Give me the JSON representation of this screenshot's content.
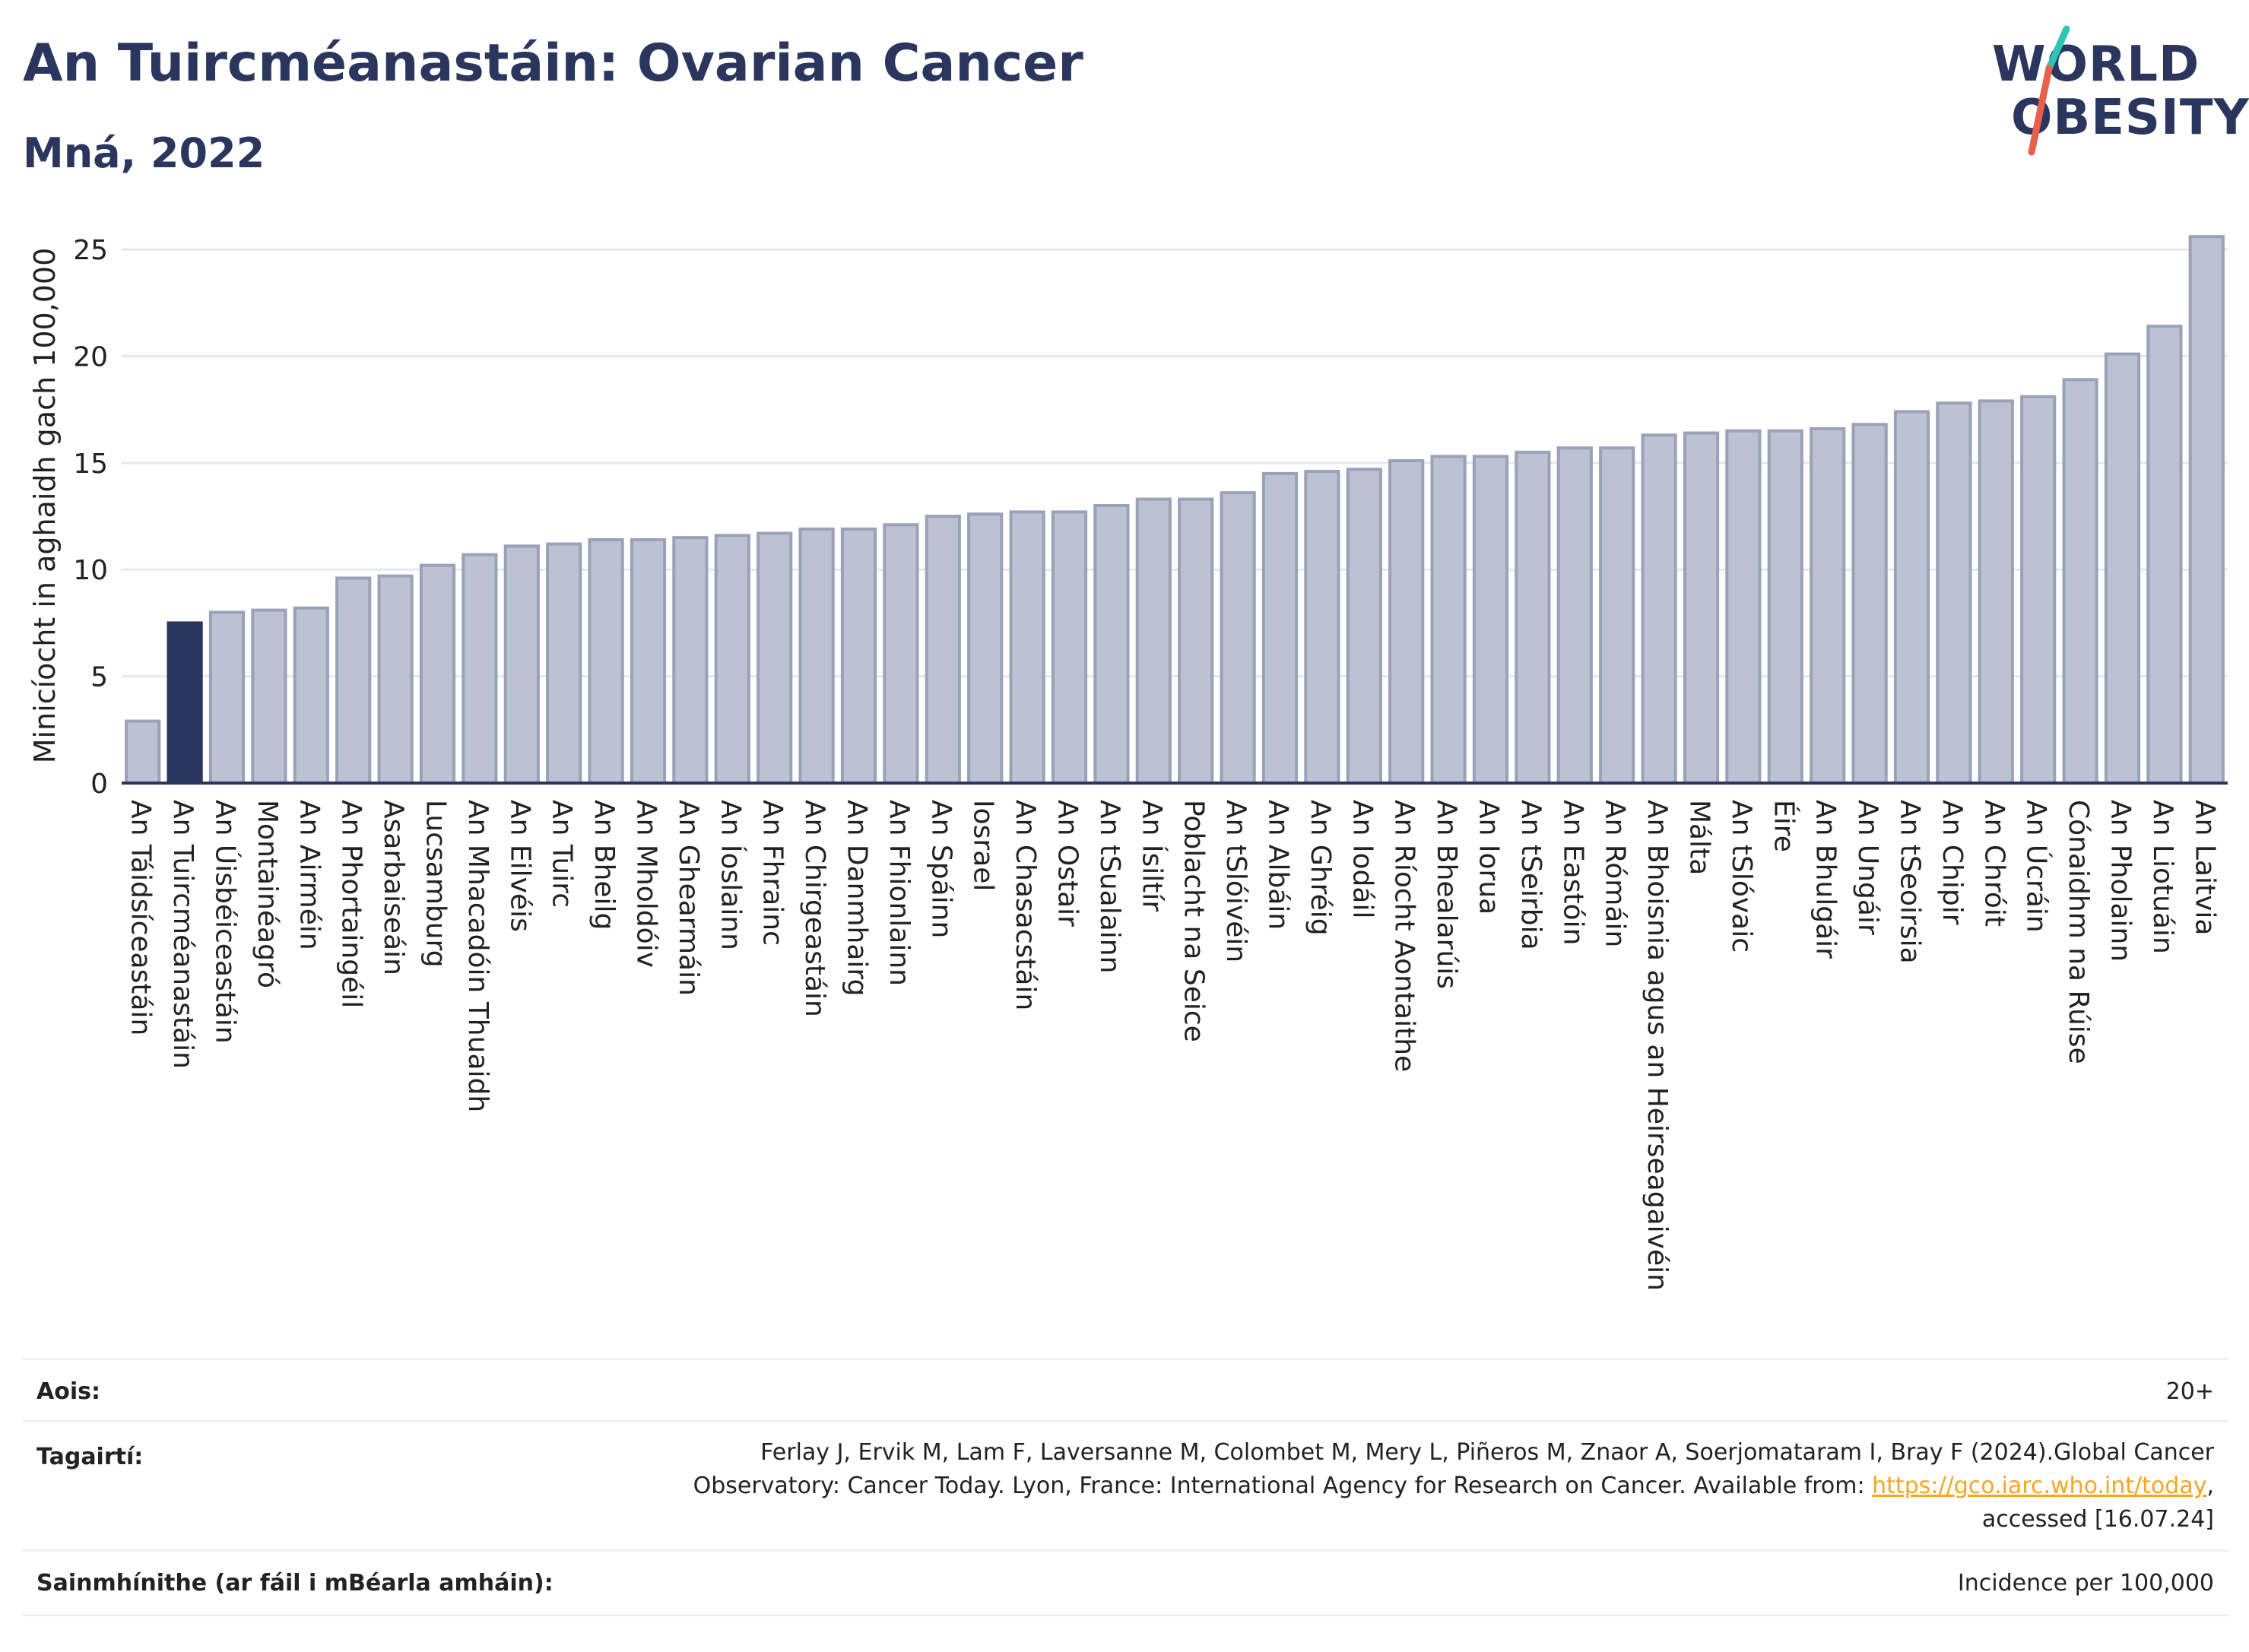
{
  "header": {
    "title": "An Tuircméanastáin: Ovarian Cancer",
    "subtitle": "Mná, 2022"
  },
  "logo": {
    "line1": "WORLD",
    "line2": "OBESITY"
  },
  "chart_data": {
    "type": "bar",
    "ylabel": "Minicíocht in aghaidh gach 100,000",
    "ylim": [
      0,
      26
    ],
    "yticks": [
      0,
      5,
      10,
      15,
      20,
      25
    ],
    "grid": true,
    "highlight_index": 1,
    "colors": {
      "default": "#bcc2d1",
      "default_edge": "#9aa1b9",
      "highlight": "#2b365e",
      "axis": "#2b365e",
      "grid": "#e6e8ef"
    },
    "categories": [
      "An Táidsíceastáin",
      "An Tuircméanastáin",
      "An Úisbéiceastáin",
      "Montainéagró",
      "An Airméin",
      "An Phortaingéil",
      "Asarbaiseáin",
      "Lucsamburg",
      "An Mhacadóin Thuaidh",
      "An Eilvéis",
      "An Tuirc",
      "An Bheilg",
      "An Mholdóiv",
      "An Ghearmáin",
      "An Íoslainn",
      "An Fhrainc",
      "An Chirgeastáin",
      "An Danmhairg",
      "An Fhionlainn",
      "An Spáinn",
      "Iosrael",
      "An Chasacstáin",
      "An Ostair",
      "An tSualainn",
      "An Ísiltír",
      "Poblacht na Seice",
      "An tSlóivéin",
      "An Albáin",
      "An Ghréig",
      "An Iodáil",
      "An Ríocht Aontaithe",
      "An Bhealarúis",
      "An Iorua",
      "An tSeirbia",
      "An Eastóin",
      "An Rómáin",
      "An Bhoisnia agus an Heirseagaivéin",
      "Málta",
      "An tSlóvaic",
      "Éire",
      "An Bhulgáir",
      "An Ungáir",
      "An tSeoirsia",
      "An Chipir",
      "An Chróit",
      "An Úcráin",
      "Cónaidhm na Rúise",
      "An Pholainn",
      "An Liotuáin",
      "An Laitvia"
    ],
    "values": [
      2.9,
      7.5,
      8.0,
      8.1,
      8.2,
      9.6,
      9.7,
      10.2,
      10.7,
      11.1,
      11.2,
      11.4,
      11.4,
      11.5,
      11.6,
      11.7,
      11.9,
      11.9,
      12.1,
      12.5,
      12.6,
      12.7,
      12.7,
      13.0,
      13.3,
      13.3,
      13.6,
      14.5,
      14.6,
      14.7,
      15.1,
      15.3,
      15.3,
      15.5,
      15.7,
      15.7,
      16.3,
      16.4,
      16.5,
      16.5,
      16.6,
      16.8,
      17.4,
      17.8,
      17.9,
      18.1,
      18.9,
      20.1,
      21.4,
      25.6
    ]
  },
  "footer": {
    "age_label": "Aois:",
    "age_value": "20+",
    "ref_label": "Tagairtí:",
    "ref_line1": "Ferlay J, Ervik M, Lam F, Laversanne M, Colombet M, Mery L, Piñeros M, Znaor A, Soerjomataram I, Bray F (2024).Global Cancer",
    "ref_line2_pre": "Observatory: Cancer Today. Lyon, France: International Agency for Research on Cancer. Available from: ",
    "ref_link": "https://gco.iarc.who.int/today",
    "ref_line2_post": ",",
    "ref_line3": "accessed [16.07.24]",
    "def_label": "Sainmhínithe (ar fáil i mBéarla amháin):",
    "def_value": "Incidence per 100,000"
  }
}
